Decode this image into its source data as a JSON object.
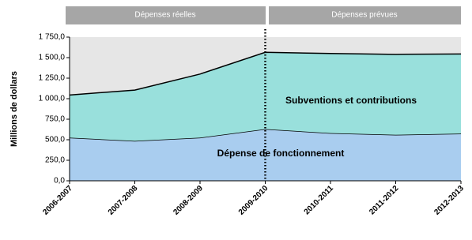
{
  "chart_data": {
    "type": "stacked-area",
    "headers": [
      "Dépenses réelles",
      "Dépenses prévues"
    ],
    "y_label": "Millions de dollars",
    "categories": [
      "2006-2007",
      "2007-2008",
      "2008-2009",
      "2009-2010",
      "2010-2011",
      "2011-2012",
      "2012-2013"
    ],
    "series": [
      {
        "name": "Dépense de fonctionnement",
        "color": "#a9cdef",
        "values": [
          525,
          485,
          525,
          630,
          580,
          560,
          575
        ]
      },
      {
        "name": "Subventions et contributions",
        "color": "#99e0dc",
        "values": [
          520,
          620,
          775,
          935,
          970,
          980,
          970
        ]
      }
    ],
    "ylim": [
      0,
      1750
    ],
    "yticks": [
      {
        "value": 0,
        "label": "0,0"
      },
      {
        "value": 250,
        "label": "250,0"
      },
      {
        "value": 500,
        "label": "500,0"
      },
      {
        "value": 750,
        "label": "750,0"
      },
      {
        "value": 1000,
        "label": "1 000,0"
      },
      {
        "value": 1250,
        "label": "1 250,0"
      },
      {
        "value": 1500,
        "label": "1 500,0"
      },
      {
        "value": 1750,
        "label": "1 750,0"
      }
    ],
    "background": "#e6e6e6"
  }
}
